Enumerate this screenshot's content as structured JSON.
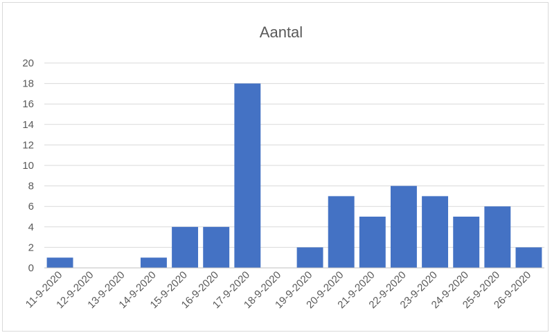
{
  "chart_data": {
    "type": "bar",
    "title": "Aantal",
    "xlabel": "",
    "ylabel": "",
    "categories": [
      "11-9-2020",
      "12-9-2020",
      "13-9-2020",
      "14-9-2020",
      "15-9-2020",
      "16-9-2020",
      "17-9-2020",
      "18-9-2020",
      "19-9-2020",
      "20-9-2020",
      "21-9-2020",
      "22-9-2020",
      "23-9-2020",
      "24-9-2020",
      "25-9-2020",
      "26-9-2020"
    ],
    "values": [
      1,
      0,
      0,
      1,
      4,
      4,
      18,
      0,
      2,
      7,
      5,
      8,
      7,
      5,
      6,
      2
    ],
    "ylim": [
      0,
      20
    ],
    "yticks": [
      0,
      2,
      4,
      6,
      8,
      10,
      12,
      14,
      16,
      18,
      20
    ],
    "grid": true,
    "legend": "none",
    "bar_color": "#4472c4",
    "grid_color": "#d9d9d9"
  }
}
